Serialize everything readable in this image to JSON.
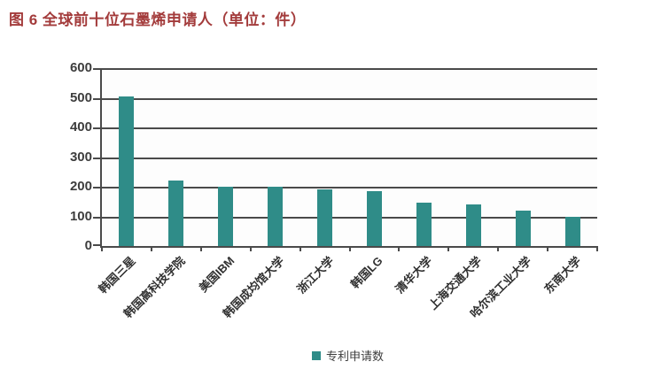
{
  "title": "图 6 全球前十位石墨烯申请人（单位：件）",
  "chart_data": {
    "type": "bar",
    "title": "图 6 全球前十位石墨烯申请人（单位：件）",
    "categories": [
      "韩国三星",
      "韩国高科技学院",
      "美国IBM",
      "韩国成均馆大学",
      "浙江大学",
      "韩国LG",
      "清华大学",
      "上海交通大学",
      "哈尔滨工业大学",
      "东南大学"
    ],
    "values": [
      505,
      220,
      200,
      200,
      190,
      185,
      145,
      140,
      120,
      100
    ],
    "legend": "专利申请数",
    "legend_position": "bottom",
    "xlabel": "",
    "ylabel": "",
    "ylim": [
      0,
      600
    ],
    "yticks": [
      0,
      100,
      200,
      300,
      400,
      500,
      600
    ],
    "grid": true,
    "x_label_rotation_deg": 45
  },
  "colors": {
    "title": "#A33B3B",
    "bar": "#2F8C88",
    "axis": "#4A4A4A",
    "tick_label": "#3D3D3D"
  }
}
